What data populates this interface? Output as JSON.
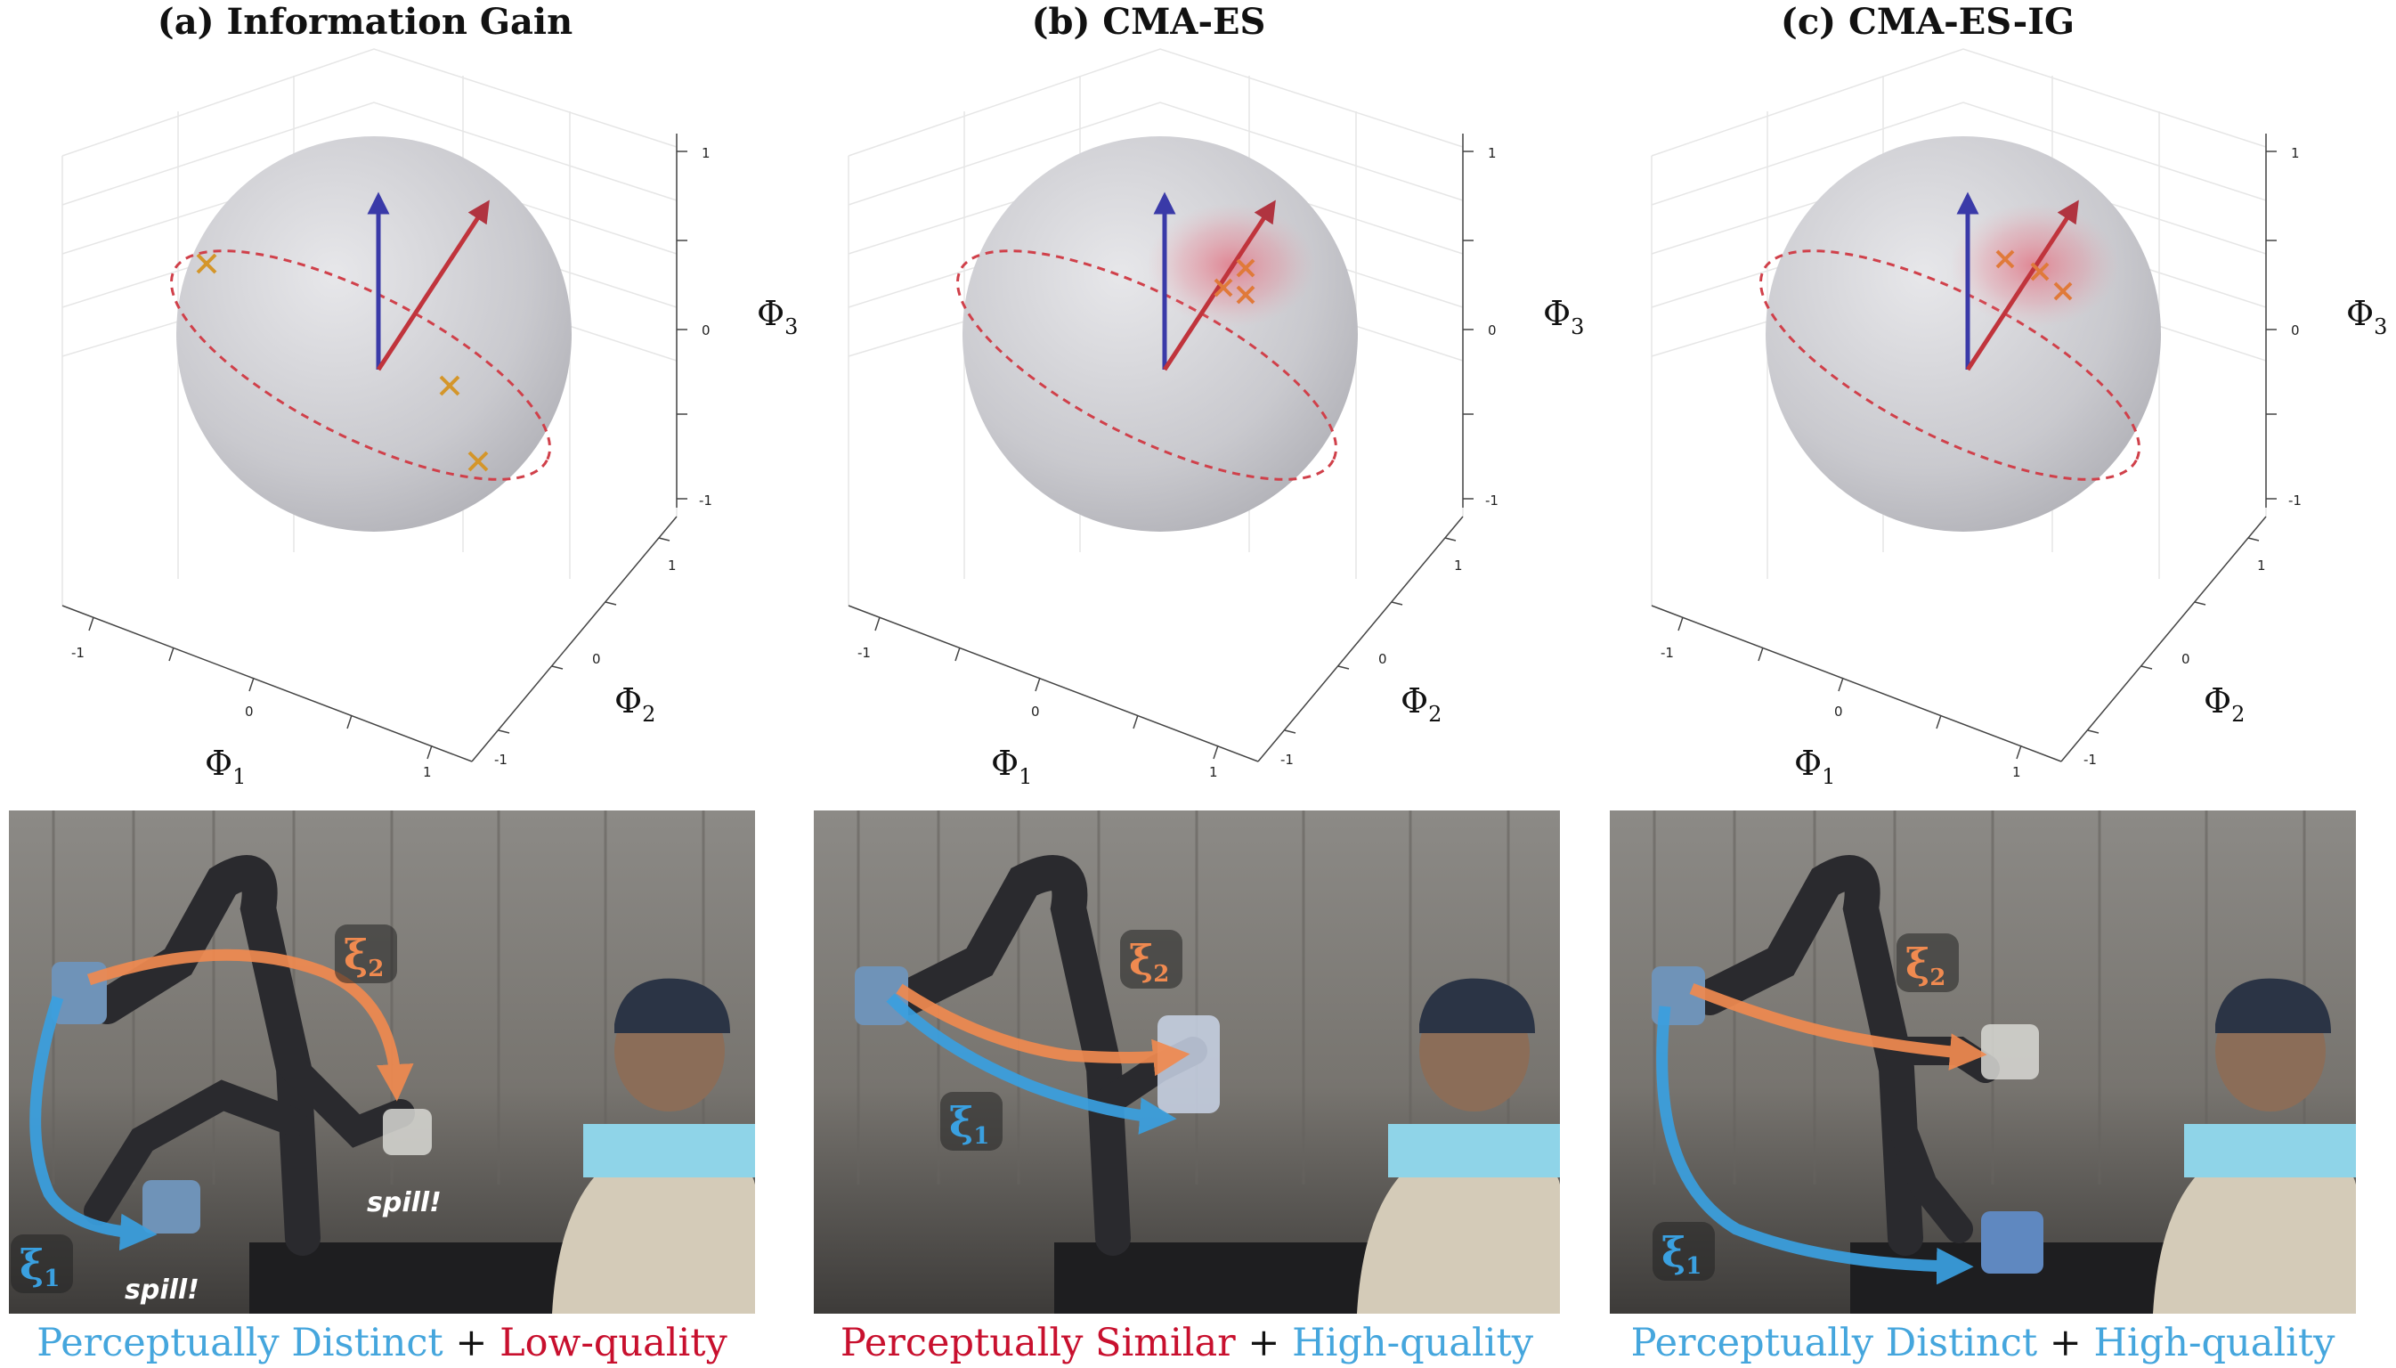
{
  "panels": [
    {
      "title": "(a) Information Gain",
      "caption": {
        "left": "Perceptually Distinct",
        "left_color": "#45a6dd",
        "plus": " + ",
        "right": "Low-quality",
        "right_color": "#c8102e"
      },
      "photo_labels": {
        "xi1": "ξ",
        "xi1_sub": "1",
        "xi2": "ξ",
        "xi2_sub": "2",
        "spill": "spill!"
      }
    },
    {
      "title": "(b) CMA-ES",
      "caption": {
        "left": "Perceptually Similar",
        "left_color": "#c8102e",
        "plus": " + ",
        "right": "High-quality",
        "right_color": "#45a6dd"
      },
      "photo_labels": {
        "xi1": "ξ",
        "xi1_sub": "1",
        "xi2": "ξ",
        "xi2_sub": "2"
      }
    },
    {
      "title": "(c) CMA-ES-IG",
      "caption": {
        "left": "Perceptually Distinct",
        "left_color": "#45a6dd",
        "plus": " + ",
        "right": "High-quality",
        "right_color": "#45a6dd"
      },
      "photo_labels": {
        "xi1": "ξ",
        "xi1_sub": "1",
        "xi2": "ξ",
        "xi2_sub": "2"
      }
    }
  ],
  "axes": {
    "x_label": "Φ",
    "x_sub": "1",
    "y_label": "Φ",
    "y_sub": "2",
    "z_label": "Φ",
    "z_sub": "3",
    "ticks": [
      "-1",
      "0",
      "1"
    ]
  },
  "colors": {
    "sphere": "#cfcfd4",
    "blue_arrow": "#3a3aa8",
    "red_arrow": "#c0343c",
    "marker_a": "#d4962a",
    "marker_bc": "#e07a3a",
    "ellipse": "#d0404a",
    "traj_blue": "#3aa0e0",
    "traj_orange": "#f08a50"
  }
}
